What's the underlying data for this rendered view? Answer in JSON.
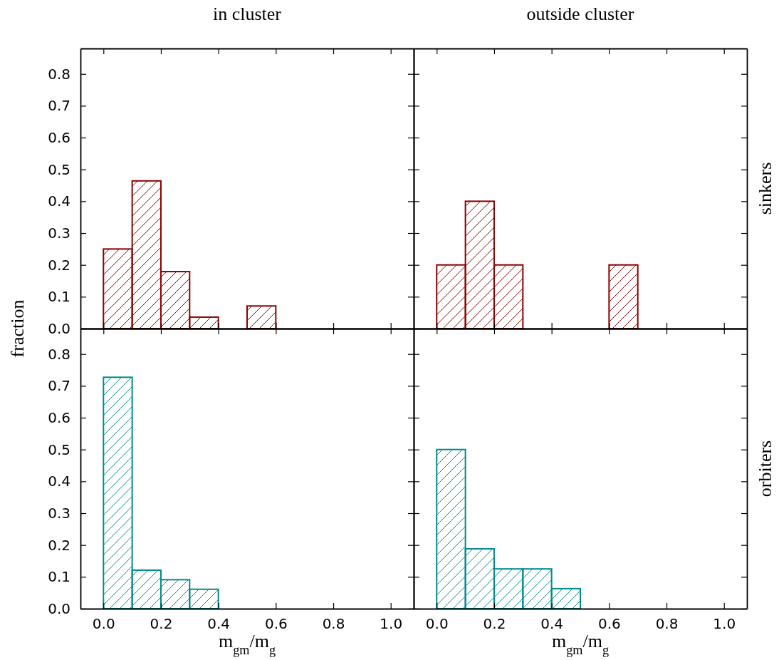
{
  "chart_data": [
    {
      "type": "histogram",
      "title": "in  cluster",
      "ylabel": "fraction",
      "bins": [
        0,
        0.1,
        0.2,
        0.3,
        0.4,
        0.5,
        0.6
      ],
      "values": [
        0.25,
        0.464,
        0.179,
        0.036,
        0,
        0.071
      ],
      "color": "#8b0000",
      "xlim": [
        -0.08,
        1.08
      ],
      "ylim": [
        0,
        0.88
      ],
      "xticks": [
        {
          "value": 0,
          "label": null
        },
        {
          "value": 0.2,
          "label": null
        },
        {
          "value": 0.4,
          "label": null
        },
        {
          "value": 0.6,
          "label": null
        },
        {
          "value": 0.8,
          "label": null
        },
        {
          "value": 1,
          "label": null
        }
      ],
      "yticks": [
        {
          "value": 0,
          "label": "0.0"
        },
        {
          "value": 0.1,
          "label": "0.1"
        },
        {
          "value": 0.2,
          "label": "0.2"
        },
        {
          "value": 0.3,
          "label": "0.3"
        },
        {
          "value": 0.4,
          "label": "0.4"
        },
        {
          "value": 0.5,
          "label": "0.5"
        },
        {
          "value": 0.6,
          "label": "0.6"
        },
        {
          "value": 0.7,
          "label": "0.7"
        },
        {
          "value": 0.8,
          "label": "0.8"
        }
      ],
      "tick_labels": "y"
    },
    {
      "type": "histogram",
      "title": "outside  cluster",
      "y2label": "sinkers",
      "bins": [
        0,
        0.1,
        0.2,
        0.3,
        0.4,
        0.5,
        0.6,
        0.7
      ],
      "values": [
        0.2,
        0.4,
        0.2,
        0,
        0,
        0,
        0.2
      ],
      "color": "#8b0000",
      "xlim": [
        -0.08,
        1.08
      ],
      "ylim": [
        0,
        0.88
      ],
      "xticks": [
        {
          "value": 0,
          "label": null
        },
        {
          "value": 0.2,
          "label": null
        },
        {
          "value": 0.4,
          "label": null
        },
        {
          "value": 0.6,
          "label": null
        },
        {
          "value": 0.8,
          "label": null
        },
        {
          "value": 1,
          "label": null
        }
      ],
      "yticks": [
        {
          "value": 0,
          "label": null
        },
        {
          "value": 0.1,
          "label": null
        },
        {
          "value": 0.2,
          "label": null
        },
        {
          "value": 0.3,
          "label": null
        },
        {
          "value": 0.4,
          "label": null
        },
        {
          "value": 0.5,
          "label": null
        },
        {
          "value": 0.6,
          "label": null
        },
        {
          "value": 0.7,
          "label": null
        },
        {
          "value": 0.8,
          "label": null
        }
      ],
      "tick_labels": false
    },
    {
      "type": "histogram",
      "xlabel": "m$_{gm}$/m$_{g}$",
      "bins": [
        0,
        0.1,
        0.2,
        0.3,
        0.4
      ],
      "values": [
        0.727,
        0.121,
        0.091,
        0.061
      ],
      "color": "#008b8b",
      "xlim": [
        -0.08,
        1.08
      ],
      "ylim": [
        0,
        0.88
      ],
      "xticks": [
        {
          "value": 0,
          "label": "0.0"
        },
        {
          "value": 0.2,
          "label": "0.2"
        },
        {
          "value": 0.4,
          "label": "0.4"
        },
        {
          "value": 0.6,
          "label": "0.6"
        },
        {
          "value": 0.8,
          "label": "0.8"
        },
        {
          "value": 1,
          "label": "1.0"
        }
      ],
      "yticks": [
        {
          "value": 0,
          "label": "0.0"
        },
        {
          "value": 0.1,
          "label": "0.1"
        },
        {
          "value": 0.2,
          "label": "0.2"
        },
        {
          "value": 0.3,
          "label": "0.3"
        },
        {
          "value": 0.4,
          "label": "0.4"
        },
        {
          "value": 0.5,
          "label": "0.5"
        },
        {
          "value": 0.6,
          "label": "0.6"
        },
        {
          "value": 0.7,
          "label": "0.7"
        },
        {
          "value": 0.8,
          "label": "0.8"
        }
      ]
    },
    {
      "type": "histogram",
      "xlabel": "m$_{gm}$/m$_{g}$",
      "y2label": "orbiters",
      "bins": [
        0,
        0.1,
        0.2,
        0.3,
        0.4,
        0.5
      ],
      "values": [
        0.5,
        0.188,
        0.125,
        0.125,
        0.063
      ],
      "color": "#008b8b",
      "xlim": [
        -0.08,
        1.08
      ],
      "ylim": [
        0,
        0.88
      ],
      "xticks": [
        {
          "value": 0,
          "label": "0.0"
        },
        {
          "value": 0.2,
          "label": "0.2"
        },
        {
          "value": 0.4,
          "label": "0.4"
        },
        {
          "value": 0.6,
          "label": "0.6"
        },
        {
          "value": 0.8,
          "label": "0.8"
        },
        {
          "value": 1,
          "label": "1.0"
        }
      ],
      "yticks": [
        {
          "value": 0,
          "label": null
        },
        {
          "value": 0.1,
          "label": null
        },
        {
          "value": 0.2,
          "label": null
        },
        {
          "value": 0.3,
          "label": null
        },
        {
          "value": 0.4,
          "label": null
        },
        {
          "value": 0.5,
          "label": null
        },
        {
          "value": 0.6,
          "label": null
        },
        {
          "value": 0.7,
          "label": null
        },
        {
          "value": 0.8,
          "label": null
        }
      ],
      "tick_labels": "x"
    }
  ]
}
